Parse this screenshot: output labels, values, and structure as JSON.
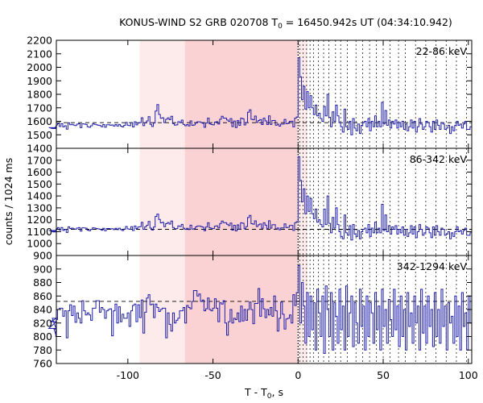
{
  "chart_data": {
    "type": "line",
    "title": {
      "prefix": "KONUS-WIND S2 GRB 020708 T",
      "sub": "0",
      "suffix": " = 16450.942s UT (04:34:10.942)"
    },
    "xlabel": {
      "prefix": "T - T",
      "sub": "0",
      "suffix": ", s"
    },
    "ylabel": "counts / 1024 ms",
    "xlim": [
      -142,
      102
    ],
    "x_ticks": [
      -100,
      -50,
      0,
      50,
      100
    ],
    "colors": {
      "series": "#1f1fa8",
      "background_light": "#fdeaea",
      "background_dark": "#fbd2d4",
      "dashed": "#000000"
    },
    "highlight_intervals": [
      {
        "from": -93,
        "to": -66.5,
        "shade": "light"
      },
      {
        "from": -66.5,
        "to": -0.5,
        "shade": "dark"
      },
      {
        "from": -0.5,
        "to": 5.5,
        "shade": "light"
      }
    ],
    "vertical_lines": [
      1,
      3,
      5,
      7,
      9,
      12,
      15,
      18,
      22,
      25,
      29,
      34,
      38,
      42,
      46,
      50,
      54,
      59,
      63,
      69,
      75,
      81,
      87,
      93,
      99
    ],
    "t0_line": 0,
    "panels": [
      {
        "label": "22-86 keV",
        "ylim": [
          1400,
          2200
        ],
        "y_ticks": [
          1400,
          1500,
          1600,
          1700,
          1800,
          1900,
          2000,
          2100,
          2200
        ],
        "background_level": 1590,
        "series_pre": [
          1553,
          1548,
          1546,
          1552,
          1559,
          1573,
          1582,
          1562,
          1583,
          1559,
          1567,
          1542,
          1589,
          1575,
          1578,
          1572,
          1569,
          1579,
          1582,
          1553,
          1581,
          1580,
          1577,
          1560,
          1556,
          1567,
          1581,
          1578,
          1575,
          1571,
          1569,
          1560,
          1576,
          1556,
          1575,
          1575,
          1571,
          1573,
          1565,
          1576,
          1565,
          1577,
          1565,
          1558,
          1570,
          1592,
          1571,
          1568,
          1590,
          1558,
          1596,
          1574,
          1587,
          1590,
          1626,
          1568,
          1588,
          1602,
          1634,
          1578,
          1562,
          1587,
          1676,
          1724,
          1651,
          1622,
          1626,
          1590,
          1615,
          1625,
          1612,
          1637,
          1583,
          1572,
          1574,
          1597,
          1592,
          1609,
          1577,
          1567,
          1576,
          1566,
          1603,
          1570,
          1573,
          1587,
          1596,
          1596,
          1591,
          1586,
          1556,
          1587,
          1623,
          1581,
          1576,
          1574,
          1594,
          1597,
          1580,
          1616,
          1637,
          1624,
          1623,
          1610,
          1599,
          1620,
          1561,
          1602,
          1554,
          1605,
          1570,
          1623,
          1619,
          1573,
          1591,
          1667,
          1685,
          1615,
          1611,
          1639,
          1592,
          1606,
          1613,
          1576,
          1623,
          1603,
          1576,
          1640,
          1577,
          1606,
          1607,
          1571,
          1579,
          1564,
          1580,
          1579,
          1614,
          1582,
          1585,
          1600,
          1601,
          1559,
          1623,
          1632
        ],
        "series_post": [
          2070,
          1930,
          1760,
          1860,
          1690,
          1820,
          1700,
          1790,
          1700,
          1650,
          1720,
          1640,
          1660,
          1620,
          1600,
          1710,
          1640,
          1800,
          1630,
          1560,
          1670,
          1600,
          1720,
          1640,
          1590,
          1560,
          1520,
          1690,
          1560,
          1540,
          1600,
          1500,
          1620,
          1550,
          1530,
          1580,
          1510,
          1570,
          1590,
          1600,
          1560,
          1620,
          1530,
          1600,
          1560,
          1640,
          1560,
          1600,
          1560,
          1740,
          1580,
          1680,
          1570,
          1610,
          1550,
          1600,
          1580,
          1610,
          1550,
          1590,
          1560,
          1600,
          1540,
          1580,
          1530,
          1560,
          1610,
          1550,
          1600,
          1520,
          1560,
          1620,
          1580,
          1540,
          1560,
          1600,
          1590,
          1560,
          1520,
          1600,
          1540,
          1610,
          1570,
          1540,
          1590,
          1580,
          1540,
          1550,
          1570,
          1510,
          1560,
          1530,
          1570,
          1600,
          1570,
          1580,
          1550,
          1580,
          1600,
          1540,
          1540,
          1560,
          1560
        ]
      },
      {
        "label": "86-342 keV",
        "ylim": [
          900,
          1800
        ],
        "y_ticks": [
          900,
          1000,
          1100,
          1200,
          1300,
          1400,
          1500,
          1600,
          1700
        ],
        "background_level": 1120,
        "series_pre": [
          1110,
          1104,
          1098,
          1104,
          1111,
          1125,
          1134,
          1114,
          1135,
          1111,
          1119,
          1094,
          1141,
          1127,
          1130,
          1124,
          1121,
          1131,
          1134,
          1105,
          1133,
          1132,
          1129,
          1112,
          1108,
          1119,
          1133,
          1130,
          1127,
          1123,
          1121,
          1112,
          1128,
          1108,
          1127,
          1127,
          1123,
          1125,
          1117,
          1128,
          1117,
          1129,
          1117,
          1110,
          1122,
          1144,
          1123,
          1120,
          1142,
          1110,
          1148,
          1126,
          1139,
          1142,
          1178,
          1120,
          1140,
          1154,
          1186,
          1130,
          1114,
          1139,
          1228,
          1248,
          1203,
          1174,
          1178,
          1142,
          1167,
          1177,
          1164,
          1189,
          1135,
          1124,
          1126,
          1149,
          1144,
          1161,
          1129,
          1119,
          1128,
          1118,
          1155,
          1122,
          1125,
          1139,
          1148,
          1148,
          1143,
          1138,
          1108,
          1139,
          1175,
          1133,
          1128,
          1126,
          1146,
          1149,
          1132,
          1168,
          1189,
          1176,
          1175,
          1162,
          1151,
          1172,
          1113,
          1154,
          1106,
          1157,
          1122,
          1175,
          1171,
          1125,
          1143,
          1219,
          1237,
          1167,
          1163,
          1191,
          1144,
          1158,
          1165,
          1128,
          1175,
          1155,
          1128,
          1192,
          1129,
          1158,
          1159,
          1123,
          1131,
          1116,
          1132,
          1131,
          1166,
          1134,
          1137,
          1152,
          1153,
          1111,
          1175,
          1184
        ],
        "series_post": [
          1730,
          1530,
          1350,
          1460,
          1250,
          1400,
          1270,
          1380,
          1250,
          1210,
          1290,
          1180,
          1200,
          1160,
          1140,
          1290,
          1160,
          1400,
          1170,
          1090,
          1220,
          1130,
          1300,
          1160,
          1100,
          1060,
          1040,
          1240,
          1090,
          1070,
          1150,
          1030,
          1160,
          1080,
          1060,
          1110,
          1040,
          1100,
          1120,
          1130,
          1090,
          1160,
          1060,
          1130,
          1090,
          1180,
          1090,
          1130,
          1090,
          1330,
          1110,
          1240,
          1100,
          1150,
          1080,
          1140,
          1120,
          1150,
          1080,
          1120,
          1090,
          1140,
          1070,
          1120,
          1060,
          1090,
          1150,
          1080,
          1140,
          1050,
          1100,
          1160,
          1120,
          1070,
          1090,
          1140,
          1130,
          1090,
          1050,
          1140,
          1070,
          1150,
          1100,
          1070,
          1130,
          1120,
          1070,
          1080,
          1100,
          1040,
          1090,
          1060,
          1100,
          1140,
          1100,
          1110,
          1080,
          1110,
          1130,
          1070,
          1070,
          1090,
          1090
        ]
      },
      {
        "label": "342-1294 keV",
        "ylim": [
          760,
          920
        ],
        "y_ticks": [
          760,
          780,
          800,
          820,
          840,
          860,
          880,
          900
        ],
        "background_level": 852,
        "series_pre": [
          812,
          822,
          827,
          811,
          800,
          825,
          840,
          842,
          842,
          830,
          838,
          798,
          838,
          847,
          831,
          845,
          821,
          835,
          827,
          820,
          853,
          838,
          832,
          835,
          832,
          824,
          842,
          842,
          853,
          853,
          836,
          843,
          840,
          827,
          838,
          840,
          841,
          801,
          838,
          848,
          820,
          844,
          822,
          833,
          827,
          827,
          835,
          815,
          838,
          846,
          848,
          822,
          847,
          828,
          854,
          805,
          836,
          857,
          862,
          847,
          848,
          828,
          848,
          843,
          837,
          840,
          842,
          842,
          798,
          835,
          818,
          808,
          835,
          820,
          824,
          827,
          838,
          838,
          843,
          820,
          846,
          843,
          841,
          852,
          868,
          868,
          860,
          863,
          852,
          854,
          838,
          841,
          857,
          840,
          838,
          842,
          856,
          842,
          822,
          850,
          848,
          853,
          820,
          802,
          822,
          840,
          820,
          827,
          825,
          835,
          822,
          845,
          823,
          840,
          824,
          840,
          851,
          840,
          819,
          849,
          849,
          871,
          830,
          856,
          841,
          828,
          840,
          832,
          843,
          830,
          860,
          838,
          808,
          827,
          851,
          833,
          811,
          826,
          827,
          832,
          820,
          862,
          846,
          865
        ],
        "series_post": [
          905,
          820,
          880,
          845,
          790,
          865,
          800,
          860,
          810,
          850,
          780,
          870,
          835,
          800,
          860,
          775,
          875,
          840,
          800,
          865,
          780,
          850,
          830,
          790,
          870,
          810,
          845,
          780,
          875,
          800,
          835,
          860,
          785,
          850,
          820,
          790,
          870,
          815,
          845,
          780,
          860,
          800,
          850,
          835,
          790,
          865,
          810,
          845,
          780,
          870,
          815,
          840,
          790,
          855,
          825,
          800,
          870,
          810,
          845,
          785,
          860,
          800,
          840,
          780,
          865,
          815,
          835,
          790,
          860,
          820,
          845,
          780,
          870,
          805,
          845,
          790,
          860,
          815,
          840,
          785,
          865,
          800,
          840,
          790,
          870,
          815,
          845,
          780,
          850,
          820,
          830,
          790,
          860,
          800,
          845,
          780,
          865,
          815,
          835,
          780,
          860,
          820,
          810
        ]
      }
    ]
  }
}
